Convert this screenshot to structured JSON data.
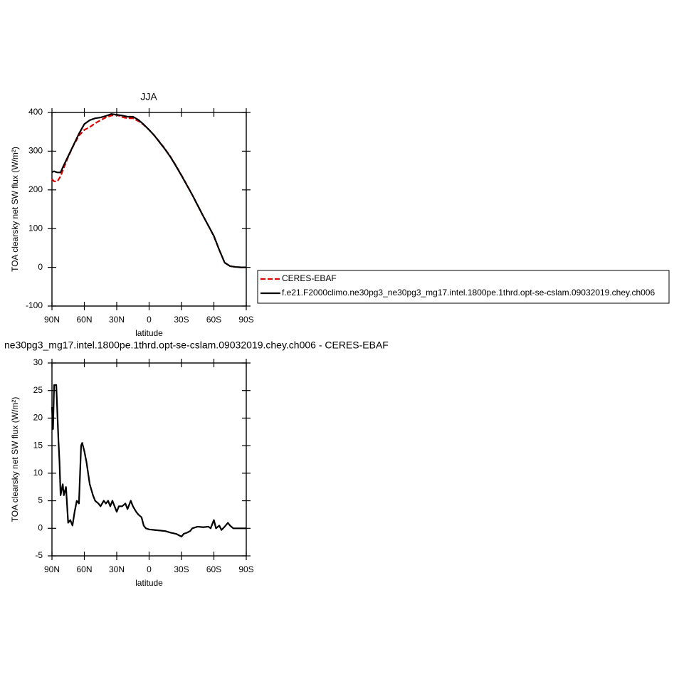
{
  "chart_data": [
    {
      "type": "line",
      "title": "JJA",
      "xlabel": "latitude",
      "ylabel": "TOA clearsky net SW flux (W/m²)",
      "x": [
        90,
        88,
        85,
        82,
        80,
        75,
        70,
        65,
        60,
        55,
        50,
        45,
        40,
        35,
        30,
        25,
        20,
        15,
        10,
        5,
        0,
        -5,
        -10,
        -15,
        -20,
        -25,
        -30,
        -35,
        -40,
        -45,
        -50,
        -55,
        -60,
        -65,
        -70,
        -75,
        -80,
        -85,
        -90
      ],
      "series": [
        {
          "name": "CERES-EBAF",
          "color": "#e00000",
          "dashed": true,
          "values": [
            228,
            222,
            222,
            235,
            250,
            285,
            315,
            340,
            355,
            362,
            372,
            380,
            387,
            392,
            394,
            388,
            385,
            385,
            378,
            368,
            355,
            340,
            323,
            305,
            285,
            262,
            238,
            213,
            187,
            160,
            133,
            107,
            80,
            45,
            12,
            3,
            1,
            0,
            0
          ]
        },
        {
          "name": "f.e21.F2000climo.ne30pg3_ne30pg3_mg17.intel.1800pe.1thrd.opt-se-cslam.09032019.chey.ch006",
          "color": "#000000",
          "dashed": false,
          "values": [
            246,
            248,
            245,
            245,
            258,
            287,
            316,
            345,
            370,
            380,
            385,
            387,
            391,
            396,
            394,
            392,
            389,
            389,
            381,
            369,
            355,
            340,
            322,
            304,
            284,
            261,
            237,
            212,
            187,
            160,
            133,
            107,
            81,
            45,
            12,
            3,
            1,
            0,
            0
          ]
        }
      ],
      "xlim": [
        90,
        -90
      ],
      "xticks": [
        {
          "value": 90,
          "label": "90N"
        },
        {
          "value": 60,
          "label": "60N"
        },
        {
          "value": 30,
          "label": "30N"
        },
        0,
        {
          "value": -30,
          "label": "30S"
        },
        {
          "value": -60,
          "label": "60S"
        },
        {
          "value": -90,
          "label": "90S"
        }
      ],
      "ylim": [
        -100,
        400
      ],
      "yticks": [
        -100,
        0,
        100,
        200,
        300,
        400
      ],
      "legend": "right"
    },
    {
      "type": "line",
      "title": "ne30pg3_mg17.intel.1800pe.1thrd.opt-se-cslam.09032019.chey.ch006 - CERES-EBAF",
      "xlabel": "latitude",
      "ylabel": "TOA clearsky net SW flux (W/m²)",
      "x": [
        90,
        89,
        88,
        86,
        84,
        83,
        82,
        80,
        79,
        77,
        75,
        73,
        71,
        69,
        67,
        65,
        63,
        62,
        60,
        58,
        55,
        52,
        50,
        47,
        45,
        42,
        40,
        38,
        36,
        34,
        32,
        30,
        28,
        25,
        22,
        20,
        17,
        15,
        12,
        10,
        7,
        5,
        3,
        0,
        -5,
        -10,
        -15,
        -20,
        -25,
        -28,
        -30,
        -32,
        -35,
        -38,
        -40,
        -45,
        -50,
        -55,
        -57,
        -60,
        -62,
        -65,
        -67,
        -70,
        -73,
        -75,
        -78,
        -80,
        -90
      ],
      "series": [
        {
          "color": "#000000",
          "dashed": false,
          "values": [
            22,
            18,
            26,
            26,
            16,
            12,
            6,
            8,
            6,
            7.5,
            1,
            1.5,
            0.5,
            3,
            5,
            4.5,
            15,
            15.5,
            14,
            12,
            8,
            6,
            5,
            4.5,
            4,
            5,
            4.5,
            5,
            4,
            5,
            4,
            3,
            4,
            4,
            4.5,
            3.5,
            5,
            4,
            3,
            2.5,
            2,
            0.5,
            0,
            -0.2,
            -0.3,
            -0.4,
            -0.5,
            -0.8,
            -1,
            -1.3,
            -1.5,
            -1,
            -0.8,
            -0.5,
            0,
            0.3,
            0.2,
            0.3,
            0,
            1.5,
            0,
            0.5,
            -0.3,
            0.3,
            1,
            0.5,
            0,
            0,
            0
          ]
        }
      ],
      "xlim": [
        90,
        -90
      ],
      "xticks": [
        {
          "value": 90,
          "label": "90N"
        },
        {
          "value": 60,
          "label": "60N"
        },
        {
          "value": 30,
          "label": "30N"
        },
        0,
        {
          "value": -30,
          "label": "30S"
        },
        {
          "value": -60,
          "label": "60S"
        },
        {
          "value": -90,
          "label": "90S"
        }
      ],
      "ylim": [
        -5,
        30
      ],
      "yticks": [
        -5,
        0,
        5,
        10,
        15,
        20,
        25,
        30
      ]
    }
  ]
}
